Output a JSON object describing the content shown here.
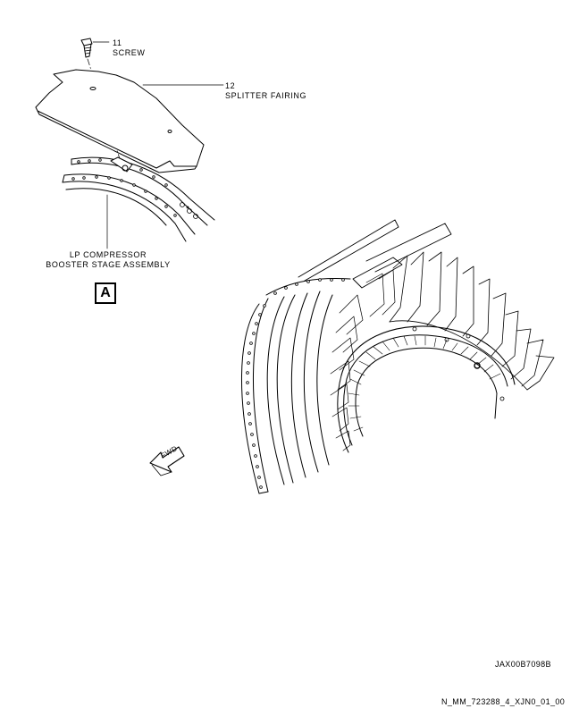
{
  "callouts": {
    "screw": {
      "number": "11",
      "label": "SCREW"
    },
    "splitter_fairing": {
      "number": "12",
      "label": "SPLITTER FAIRING"
    },
    "lp_compressor": {
      "line1": "LP COMPRESSOR",
      "line2": "BOOSTER STAGE ASSEMBLY"
    }
  },
  "view_label": "A",
  "direction_label": "FWD",
  "figure_id": "JAX00B7098B",
  "document_id": "N_MM_723288_4_XJN0_01_00"
}
